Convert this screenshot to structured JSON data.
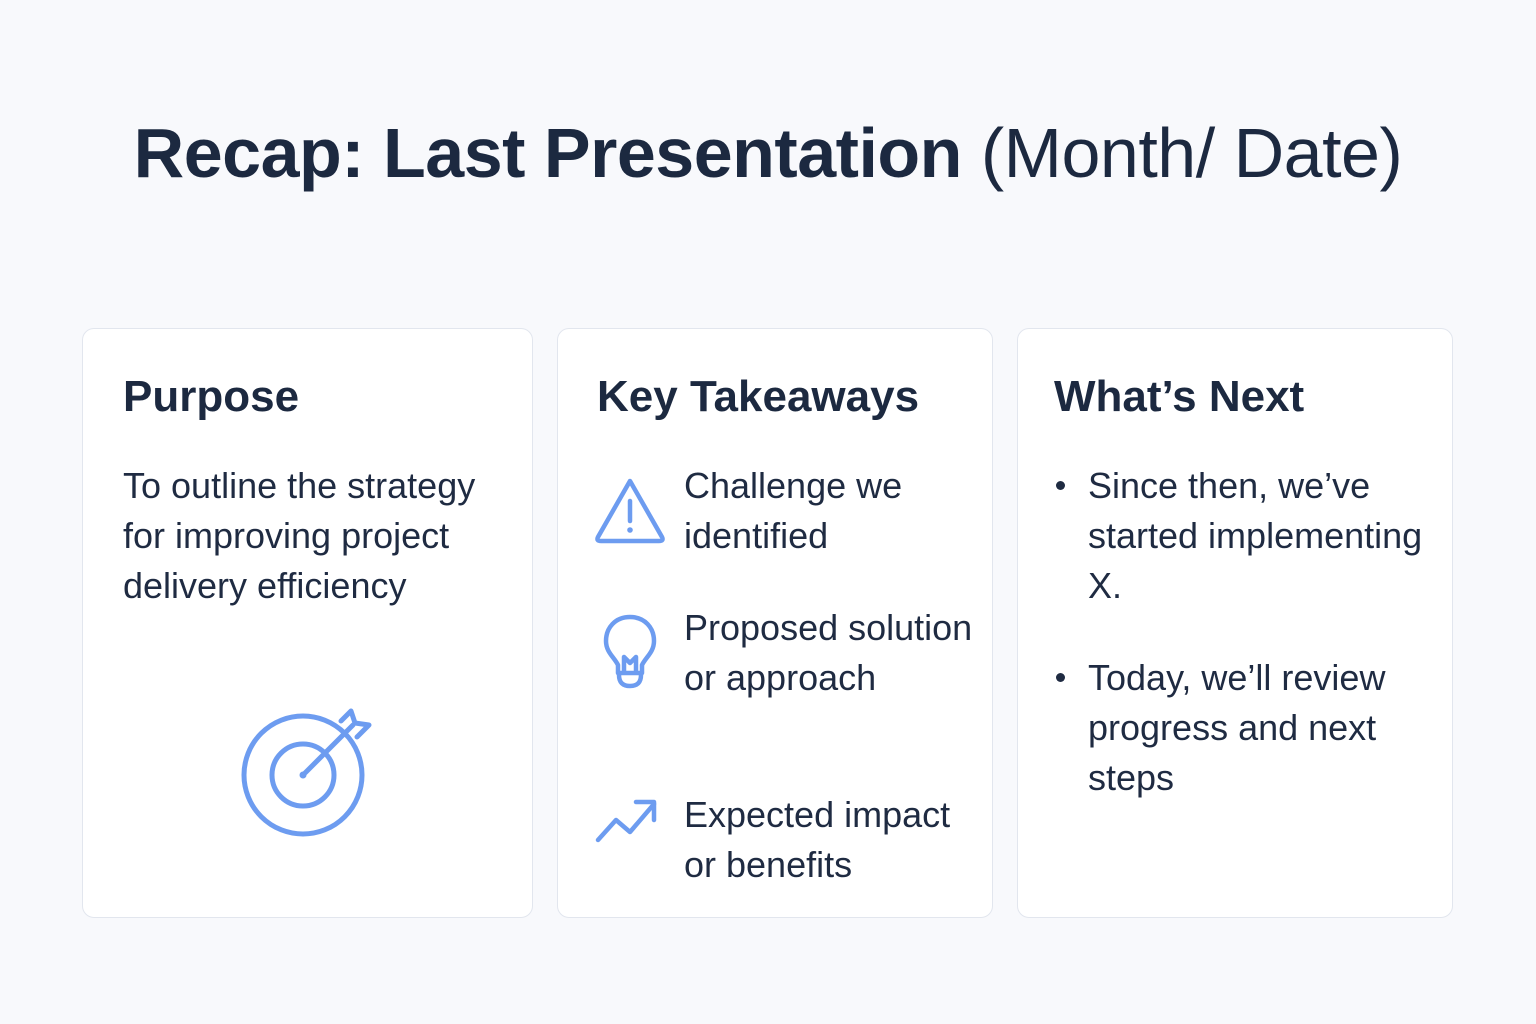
{
  "title": {
    "bold": "Recap: Last Presentation",
    "regular": " (Month/ Date)"
  },
  "cards": {
    "purpose": {
      "heading": "Purpose",
      "text": "To outline the strategy for improving project delivery efficiency",
      "icon": "target-arrow-icon"
    },
    "takeaways": {
      "heading": "Key Takeaways",
      "items": [
        {
          "icon": "warning-triangle-icon",
          "text": "Challenge we identified"
        },
        {
          "icon": "lightbulb-icon",
          "text": "Proposed solution or approach"
        },
        {
          "icon": "trend-up-arrow-icon",
          "text": "Expected impact or benefits"
        }
      ]
    },
    "next": {
      "heading": "What’s Next",
      "items": [
        "Since then, we’ve started implementing X.",
        "Today, we’ll review progress and next steps"
      ]
    }
  },
  "colors": {
    "background": "#f8f9fc",
    "card": "#ffffff",
    "text": "#1c2940",
    "icon_accent": "#6d9cf0",
    "card_border": "#e2e6ee"
  }
}
